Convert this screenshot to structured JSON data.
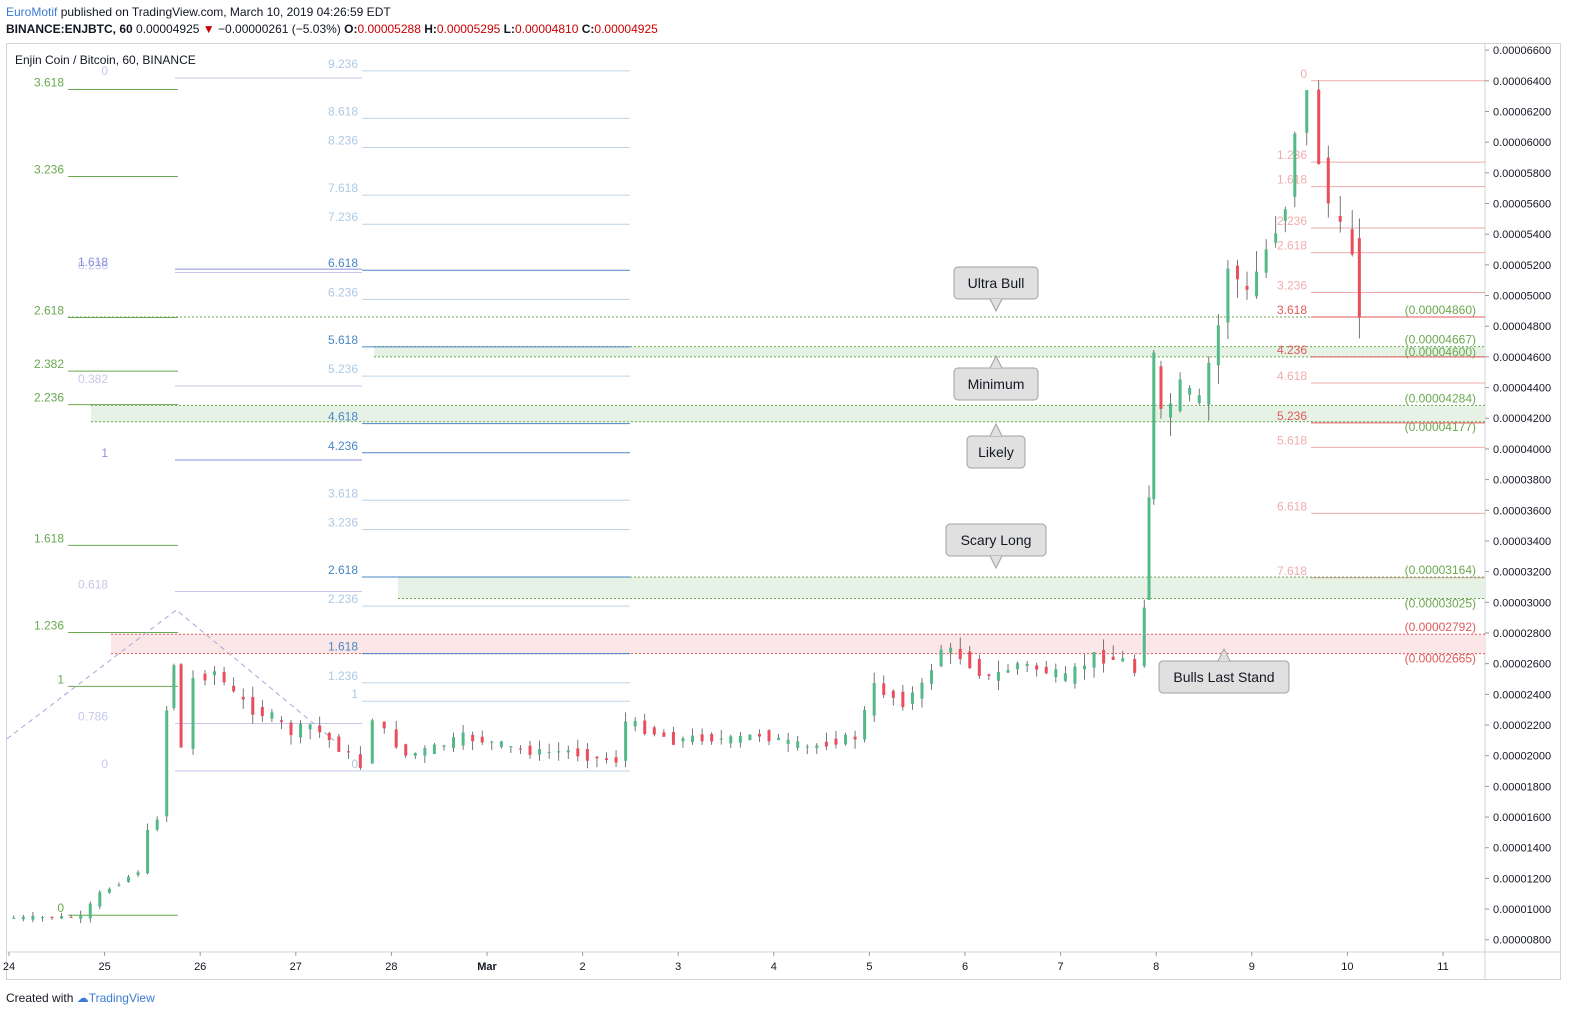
{
  "header": {
    "author": "EuroMotif",
    "published": "published on TradingView.com, March 10, 2019 04:26:59 EDT",
    "symbol": "BINANCE:ENJBTC, 60",
    "last": "0.00004925",
    "change_arrow": "▼",
    "change": "−0.00000261 (−5.03%)",
    "o_label": "O:",
    "o": "0.00005288",
    "h_label": "H:",
    "h": "0.00005295",
    "l_label": "L:",
    "l": "0.00004810",
    "c_label": "C:",
    "c": "0.00004925"
  },
  "footer": {
    "created_with": "Created with",
    "brand": "TradingView"
  },
  "colors": {
    "up": "#53b987",
    "down": "#eb4d5c",
    "fib_green": "#6aa84f",
    "fib_blue": "#4a86c5",
    "fib_red": "#e8a0a0",
    "zone_green": "#e4f1e4",
    "zone_red": "#fbe4e4"
  },
  "chart_data": {
    "type": "candlestick",
    "title": "Enjin Coin / Bitcoin, 60, BINANCE",
    "ylim": [
      7.2e-06,
      6.64e-05
    ],
    "y_ticks": [
      "0.00000800",
      "0.00001000",
      "0.00001200",
      "0.00001400",
      "0.00001600",
      "0.00001800",
      "0.00002000",
      "0.00002200",
      "0.00002400",
      "0.00002600",
      "0.00002800",
      "0.00003000",
      "0.00003200",
      "0.00003400",
      "0.00003600",
      "0.00003800",
      "0.00004000",
      "0.00004200",
      "0.00004400",
      "0.00004600",
      "0.00004800",
      "0.00005000",
      "0.00005200",
      "0.00005400",
      "0.00005600",
      "0.00005800",
      "0.00006000",
      "0.00006200",
      "0.00006400",
      "0.00006600"
    ],
    "x_ticks": [
      "24",
      "25",
      "26",
      "27",
      "28",
      "Mar",
      "2",
      "3",
      "4",
      "5",
      "6",
      "7",
      "8",
      "9",
      "10",
      "11"
    ],
    "price_path": [
      [
        24.0,
        9.4e-06
      ],
      [
        24.8,
        9.5e-06
      ],
      [
        25.0,
        1.1e-05
      ],
      [
        25.4,
        1.25e-05
      ],
      [
        25.5,
        1.5e-05
      ],
      [
        25.6,
        1.6e-05
      ],
      [
        25.7,
        2.3e-05
      ],
      [
        25.75,
        2.6e-05
      ],
      [
        25.85,
        2.05e-05
      ],
      [
        26.0,
        2.5e-05
      ],
      [
        26.2,
        2.55e-05
      ],
      [
        26.4,
        2.4e-05
      ],
      [
        26.6,
        2.3e-05
      ],
      [
        26.8,
        2.25e-05
      ],
      [
        27.0,
        2.15e-05
      ],
      [
        27.2,
        2.2e-05
      ],
      [
        27.4,
        2.1e-05
      ],
      [
        27.6,
        2e-05
      ],
      [
        27.75,
        1.93e-05
      ],
      [
        27.85,
        2.25e-05
      ],
      [
        28.0,
        2.15e-05
      ],
      [
        28.2,
        2e-05
      ],
      [
        28.5,
        2.05e-05
      ],
      [
        28.8,
        2.12e-05
      ],
      [
        29.0,
        2.1e-05
      ],
      [
        29.3,
        2.05e-05
      ],
      [
        29.6,
        2.02e-05
      ],
      [
        29.9,
        2.03e-05
      ],
      [
        30.2,
        1.98e-05
      ],
      [
        30.4,
        1.97e-05
      ],
      [
        30.5,
        2.22e-05
      ],
      [
        30.8,
        2.15e-05
      ],
      [
        31.0,
        2.1e-05
      ],
      [
        31.3,
        2.12e-05
      ],
      [
        31.6,
        2.1e-05
      ],
      [
        31.9,
        2.14e-05
      ],
      [
        32.2,
        2.08e-05
      ],
      [
        32.4,
        2.05e-05
      ],
      [
        32.7,
        2.1e-05
      ],
      [
        32.9,
        2.12e-05
      ],
      [
        33.1,
        2.45e-05
      ],
      [
        33.4,
        2.35e-05
      ],
      [
        33.6,
        2.45e-05
      ],
      [
        33.8,
        2.7e-05
      ],
      [
        34.0,
        2.65e-05
      ],
      [
        34.3,
        2.5e-05
      ],
      [
        34.6,
        2.6e-05
      ],
      [
        34.9,
        2.55e-05
      ],
      [
        35.1,
        2.5e-05
      ],
      [
        35.4,
        2.65e-05
      ],
      [
        35.7,
        2.62e-05
      ],
      [
        35.85,
        2.55e-05
      ],
      [
        35.9,
        3e-05
      ],
      [
        35.95,
        3.7e-05
      ],
      [
        36.0,
        4.6e-05
      ],
      [
        36.1,
        4.2e-05
      ],
      [
        36.3,
        4.4e-05
      ],
      [
        36.5,
        4.3e-05
      ],
      [
        36.7,
        4.8e-05
      ],
      [
        36.8,
        5.2e-05
      ],
      [
        37.0,
        5e-05
      ],
      [
        37.2,
        5.3e-05
      ],
      [
        37.4,
        5.6e-05
      ],
      [
        37.5,
        6.1e-05
      ],
      [
        37.65,
        6.3e-05
      ],
      [
        37.75,
        5.9e-05
      ],
      [
        37.85,
        5.6e-05
      ],
      [
        38.0,
        5.4e-05
      ],
      [
        38.1,
        5.3e-05
      ],
      [
        38.15,
        4.93e-05
      ]
    ],
    "fib_sets": [
      {
        "name": "left-green",
        "color": "#6aa84f",
        "labels": [
          {
            "t": "3.618",
            "v": 6.343e-05
          },
          {
            "t": "3.236",
            "v": 5.776e-05
          },
          {
            "t": "2.618",
            "v": 4.857e-05
          },
          {
            "t": "2.382",
            "v": 4.507e-05
          },
          {
            "t": "2.236",
            "v": 4.289e-05
          },
          {
            "t": "1.618",
            "v": 3.371e-05
          },
          {
            "t": "1.236",
            "v": 2.803e-05
          },
          {
            "t": "1",
            "v": 2.452e-05
          },
          {
            "t": "0",
            "v": 9.6e-06
          }
        ]
      },
      {
        "name": "left-blue",
        "color": "#8c8fd9",
        "labels": [
          {
            "t": "0",
            "v": 6.418e-05
          },
          {
            "t": "0.236",
            "v": 5.15e-05
          },
          {
            "t": "1.618",
            "v": 5.1725e-05
          },
          {
            "t": "0.382",
            "v": 4.41e-05
          },
          {
            "t": "1",
            "v": 3.928e-05
          },
          {
            "t": "0.618",
            "v": 3.07e-05
          },
          {
            "t": "0.786",
            "v": 2.21e-05
          },
          {
            "t": "0",
            "v": 1.9e-05
          }
        ]
      },
      {
        "name": "mid-blue",
        "color": "#4a86c5",
        "labels": [
          {
            "t": "9.236",
            "v": 6.465e-05
          },
          {
            "t": "8.618",
            "v": 6.155e-05
          },
          {
            "t": "8.236",
            "v": 5.965e-05
          },
          {
            "t": "7.618",
            "v": 5.655e-05
          },
          {
            "t": "7.236",
            "v": 5.465e-05
          },
          {
            "t": "6.618",
            "v": 5.165e-05
          },
          {
            "t": "6.236",
            "v": 4.975e-05
          },
          {
            "t": "5.618",
            "v": 4.665e-05
          },
          {
            "t": "5.236",
            "v": 4.475e-05
          },
          {
            "t": "4.618",
            "v": 4.165e-05
          },
          {
            "t": "4.236",
            "v": 3.975e-05
          },
          {
            "t": "3.618",
            "v": 3.665e-05
          },
          {
            "t": "3.236",
            "v": 3.475e-05
          },
          {
            "t": "2.618",
            "v": 3.165e-05
          },
          {
            "t": "2.236",
            "v": 2.975e-05
          },
          {
            "t": "1.618",
            "v": 2.665e-05
          },
          {
            "t": "1.236",
            "v": 2.475e-05
          },
          {
            "t": "1",
            "v": 2.355e-05
          },
          {
            "t": "0",
            "v": 1.9e-05
          }
        ]
      },
      {
        "name": "right-red",
        "color": "#e05a5a",
        "labels": [
          {
            "t": "0",
            "v": 6.4e-05
          },
          {
            "t": "1.236",
            "v": 5.87e-05
          },
          {
            "t": "1.618",
            "v": 5.71e-05
          },
          {
            "t": "2.236",
            "v": 5.44e-05
          },
          {
            "t": "2.618",
            "v": 5.28e-05
          },
          {
            "t": "3.236",
            "v": 5.02e-05
          },
          {
            "t": "3.618",
            "v": 4.86e-05
          },
          {
            "t": "4.236",
            "v": 4.6e-05
          },
          {
            "t": "4.618",
            "v": 4.43e-05
          },
          {
            "t": "5.236",
            "v": 4.17e-05
          },
          {
            "t": "5.618",
            "v": 4.01e-05
          },
          {
            "t": "6.618",
            "v": 3.58e-05
          },
          {
            "t": "7.618",
            "v": 3.16e-05
          }
        ]
      }
    ],
    "zones": [
      {
        "top": 4.667e-05,
        "bottom": 4.6e-05,
        "color": "green",
        "labels": [
          "(0.00004667)",
          "(0.00004600)"
        ]
      },
      {
        "top": 4.284e-05,
        "bottom": 4.177e-05,
        "color": "green",
        "labels": [
          "(0.00004284)",
          "(0.00004177)"
        ]
      },
      {
        "top": 3.164e-05,
        "bottom": 3.025e-05,
        "color": "green",
        "labels": [
          "(0.00003164)",
          "(0.00003025)"
        ]
      },
      {
        "top": 2.792e-05,
        "bottom": 2.665e-05,
        "color": "red",
        "labels": [
          "(0.00002792)",
          "(0.00002665)"
        ]
      }
    ],
    "line_4860": {
      "value": 4.86e-05,
      "label": "(0.00004860)"
    },
    "callouts": [
      {
        "text": "Ultra Bull",
        "pointer": "down",
        "value": 4.86e-05
      },
      {
        "text": "Minimum",
        "pointer": "up",
        "value": 4.667e-05
      },
      {
        "text": "Likely",
        "pointer": "up",
        "value": 4.284e-05
      },
      {
        "text": "Scary Long",
        "pointer": "down",
        "value": 3.025e-05
      },
      {
        "text": "Bulls Last Stand",
        "pointer": "up",
        "value": 2.665e-05
      }
    ]
  }
}
